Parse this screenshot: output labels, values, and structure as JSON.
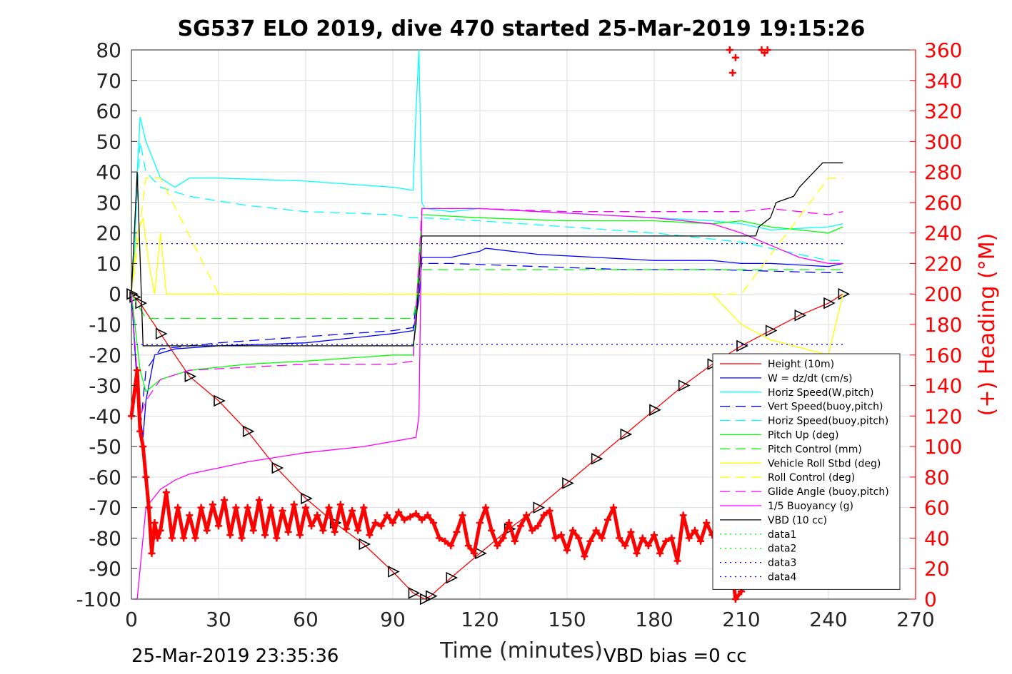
{
  "chart_data": {
    "type": "line",
    "title": "SG537 ELO 2019, dive 470 started 25-Mar-2019 19:15:26",
    "xlabel": "Time (minutes)",
    "ylabel": "",
    "y2label": "(+) Heading (°M)",
    "xlim": [
      0,
      270
    ],
    "ylim": [
      -100,
      80
    ],
    "y2lim": [
      0,
      360
    ],
    "xticks": [
      "0",
      "30",
      "60",
      "90",
      "120",
      "150",
      "180",
      "210",
      "240",
      "270"
    ],
    "yticks": [
      "80",
      "70",
      "60",
      "50",
      "40",
      "30",
      "20",
      "10",
      "0",
      "-10",
      "-20",
      "-30",
      "-40",
      "-50",
      "-60",
      "-70",
      "-80",
      "-90",
      "-100"
    ],
    "y2ticks": [
      "360",
      "340",
      "320",
      "300",
      "280",
      "260",
      "240",
      "220",
      "200",
      "180",
      "160",
      "140",
      "120",
      "100",
      "80",
      "60",
      "40",
      "20",
      "0"
    ],
    "grid": true,
    "legend_position": "lower-right",
    "footer_left": "25-Mar-2019 23:35:36",
    "footer_right": "VBD bias =0 cc",
    "colors": {
      "height": "#ff0000",
      "w": "#0000ff",
      "horiz_w": "#00ffff",
      "vert_buoy": "#0000ff",
      "horiz_buoy": "#00ffff",
      "pitch_up": "#00ff00",
      "pitch_ctrl": "#00ff00",
      "roll": "#ffff00",
      "roll_ctrl": "#ffff00",
      "glide": "#ff00ff",
      "buoyancy": "#ff00ff",
      "vbd": "#000000",
      "data_green": "#00ff00",
      "data_blue": "#0000ff",
      "heading": "#ff0000",
      "axis2": "#ff0000"
    },
    "series": [
      {
        "key": "height",
        "name": "Height (10m)",
        "style": "solid",
        "marker": "triangle",
        "x": [
          0,
          1,
          3,
          10,
          20,
          30,
          40,
          50,
          60,
          70,
          80,
          90,
          97,
          101,
          103,
          110,
          120,
          130,
          140,
          150,
          160,
          170,
          180,
          190,
          200,
          210,
          220,
          230,
          240,
          245
        ],
        "y": [
          0,
          -1,
          -3,
          -13,
          -27,
          -35,
          -45,
          -57,
          -67,
          -75,
          -82,
          -91,
          -98,
          -100,
          -99,
          -93,
          -85,
          -77,
          -70,
          -62,
          -54,
          -46,
          -38,
          -30,
          -23,
          -17,
          -12,
          -7,
          -3,
          0
        ]
      },
      {
        "key": "w",
        "name": "W = dz/dt (cm/s)",
        "style": "solid",
        "x": [
          0,
          1,
          2,
          3,
          4,
          5,
          8,
          15,
          30,
          60,
          90,
          97,
          99,
          100,
          110,
          120,
          122,
          140,
          160,
          180,
          200,
          210,
          220,
          240,
          245
        ],
        "y": [
          0,
          -15,
          -30,
          -40,
          -47,
          -35,
          -20,
          -18,
          -17,
          -16,
          -13,
          -12,
          -2,
          12,
          12,
          14,
          15,
          13,
          12,
          11,
          11,
          10,
          10,
          9,
          10
        ]
      },
      {
        "key": "horiz_w",
        "name": "Horiz Speed(W,pitch)",
        "style": "solid",
        "x": [
          0,
          1,
          2,
          3,
          5,
          10,
          15,
          20,
          30,
          60,
          90,
          97,
          98,
          99,
          100,
          101,
          110,
          120,
          140,
          160,
          180,
          200,
          210,
          220,
          240,
          245
        ],
        "y": [
          0,
          10,
          40,
          58,
          50,
          38,
          35,
          38,
          38,
          37,
          35,
          34,
          60,
          80,
          30,
          28,
          27,
          28,
          27,
          26,
          25,
          24,
          23,
          21,
          22,
          23
        ]
      },
      {
        "key": "vert_buoy",
        "name": "Vert Speed(buoy,pitch)",
        "style": "dashed",
        "x": [
          0,
          3,
          5,
          10,
          30,
          60,
          90,
          97,
          100,
          110,
          140,
          170,
          200,
          240,
          245
        ],
        "y": [
          0,
          -45,
          -25,
          -18,
          -16,
          -14,
          -12,
          -11,
          10,
          10,
          9,
          8,
          8,
          7,
          7
        ]
      },
      {
        "key": "horiz_buoy",
        "name": "Horiz Speed(buoy,pitch)",
        "style": "dashed",
        "x": [
          0,
          3,
          5,
          10,
          20,
          40,
          60,
          90,
          97,
          100,
          120,
          150,
          180,
          210,
          240,
          245
        ],
        "y": [
          0,
          50,
          40,
          35,
          32,
          29,
          27,
          26,
          25,
          25,
          24,
          22,
          20,
          17,
          11,
          11
        ]
      },
      {
        "key": "pitch_up",
        "name": "Pitch Up (deg)",
        "style": "solid",
        "x": [
          0,
          3,
          5,
          10,
          20,
          40,
          60,
          90,
          97,
          100,
          120,
          150,
          180,
          200,
          210,
          220,
          240,
          245
        ],
        "y": [
          0,
          -25,
          -32,
          -28,
          -25,
          -23,
          -22,
          -20,
          -20,
          26,
          25,
          24,
          24,
          23,
          24,
          22,
          20,
          22
        ]
      },
      {
        "key": "pitch_ctrl",
        "name": "Pitch Control (mm)",
        "style": "dashed",
        "x": [
          0,
          5,
          10,
          30,
          60,
          90,
          97,
          100,
          120,
          150,
          180,
          210,
          240,
          245
        ],
        "y": [
          0,
          -8,
          -8,
          -8,
          -8,
          -8,
          -8,
          8,
          8,
          8,
          8,
          8,
          8,
          8
        ]
      },
      {
        "key": "roll",
        "name": "Vehicle Roll Stbd (deg)",
        "style": "solid",
        "x": [
          0,
          2,
          4,
          6,
          8,
          10,
          12,
          14,
          20,
          30,
          40,
          60,
          80,
          97,
          100,
          120,
          140,
          160,
          180,
          200,
          210,
          220,
          240,
          245
        ],
        "y": [
          0,
          20,
          25,
          10,
          0,
          20,
          0,
          0,
          0,
          0,
          0,
          0,
          0,
          0,
          0,
          0,
          0,
          0,
          0,
          0,
          -10,
          -15,
          -20,
          0
        ]
      },
      {
        "key": "roll_ctrl",
        "name": "Roll Control (deg)",
        "style": "dashed",
        "x": [
          0,
          5,
          10,
          30,
          60,
          90,
          97,
          100,
          120,
          150,
          180,
          210,
          240,
          245
        ],
        "y": [
          0,
          38,
          38,
          0,
          0,
          0,
          0,
          0,
          0,
          0,
          0,
          0,
          38,
          38
        ]
      },
      {
        "key": "glide",
        "name": "Glide Angle (buoy,pitch)",
        "style": "dashed",
        "x": [
          0,
          3,
          5,
          10,
          20,
          40,
          60,
          90,
          97,
          100,
          120,
          150,
          180,
          200,
          210,
          220,
          240,
          245
        ],
        "y": [
          0,
          -40,
          -35,
          -28,
          -25,
          -24,
          -23,
          -23,
          -22,
          28,
          28,
          27,
          27,
          27,
          27,
          28,
          26,
          27
        ]
      },
      {
        "key": "buoyancy",
        "name": "1/5 Buoyancy (g)",
        "style": "solid",
        "x": [
          1,
          2,
          3,
          5,
          10,
          15,
          20,
          30,
          40,
          60,
          80,
          98,
          99,
          100,
          120,
          140,
          160,
          180,
          200,
          210,
          220,
          230,
          240,
          245
        ],
        "y": [
          -100,
          -100,
          -90,
          -70,
          -64,
          -61,
          -59,
          -57,
          -55,
          -52,
          -50,
          -47,
          -40,
          28,
          28,
          27,
          26,
          25,
          23,
          20,
          16,
          12,
          10,
          10
        ]
      },
      {
        "key": "vbd",
        "name": "VBD (10 cc)",
        "style": "solid",
        "x": [
          0,
          2,
          4,
          97,
          98,
          100,
          101,
          215,
          216,
          220,
          222,
          228,
          230,
          235,
          238,
          245
        ],
        "y": [
          0,
          40,
          -17,
          -17,
          -10,
          19,
          19,
          19,
          22,
          25,
          30,
          32,
          35,
          40,
          43,
          43
        ]
      },
      {
        "key": "data_green",
        "name": "data1",
        "style": "dotted",
        "x": [],
        "y": []
      },
      {
        "key": "data_green",
        "name": "data2",
        "style": "dotted",
        "x": [],
        "y": []
      },
      {
        "key": "data_blue",
        "name": "data3",
        "style": "dotted",
        "x": [
          0,
          245
        ],
        "y": [
          16.5,
          16.5
        ]
      },
      {
        "key": "data_blue",
        "name": "data4",
        "style": "dotted",
        "x": [
          0,
          245
        ],
        "y": [
          -16.5,
          -16.5
        ]
      }
    ],
    "heading": {
      "name": "Heading",
      "axis": "right",
      "marker": "plus",
      "x": [
        0,
        2,
        3,
        4,
        5,
        6,
        7,
        8,
        9,
        10,
        12,
        14,
        16,
        18,
        20,
        22,
        24,
        26,
        28,
        30,
        32,
        34,
        36,
        38,
        40,
        42,
        44,
        46,
        48,
        50,
        52,
        54,
        56,
        58,
        60,
        62,
        64,
        66,
        68,
        70,
        72,
        74,
        76,
        78,
        80,
        82,
        84,
        86,
        88,
        90,
        92,
        94,
        96,
        98,
        100,
        102,
        104,
        106,
        108,
        110,
        112,
        114,
        116,
        118,
        120,
        122,
        124,
        126,
        128,
        130,
        132,
        134,
        136,
        138,
        140,
        142,
        144,
        146,
        148,
        150,
        152,
        154,
        156,
        158,
        160,
        162,
        164,
        166,
        168,
        170,
        172,
        174,
        176,
        178,
        180,
        182,
        184,
        186,
        188,
        190,
        192,
        194,
        196,
        198,
        200,
        202,
        204,
        206,
        208,
        210,
        212
      ],
      "y": [
        120,
        150,
        110,
        100,
        80,
        60,
        30,
        50,
        40,
        45,
        70,
        40,
        60,
        40,
        55,
        40,
        60,
        45,
        62,
        48,
        65,
        42,
        60,
        40,
        60,
        45,
        65,
        42,
        60,
        40,
        58,
        44,
        62,
        42,
        60,
        48,
        55,
        45,
        60,
        44,
        62,
        46,
        58,
        45,
        60,
        42,
        50,
        48,
        55,
        50,
        57,
        52,
        54,
        56,
        52,
        55,
        50,
        40,
        38,
        35,
        44,
        55,
        35,
        30,
        50,
        60,
        45,
        35,
        40,
        50,
        38,
        48,
        55,
        45,
        48,
        55,
        58,
        40,
        42,
        32,
        45,
        40,
        28,
        38,
        45,
        40,
        52,
        60,
        40,
        35,
        44,
        30,
        40,
        35,
        42,
        30,
        38,
        40,
        25,
        55,
        40,
        45,
        38,
        50,
        42,
        50,
        40,
        30,
        0,
        5,
        20
      ]
    },
    "heading_outliers": {
      "x": [
        206,
        207,
        208,
        217,
        218,
        219
      ],
      "y": [
        360,
        345,
        355,
        360,
        358,
        360
      ]
    }
  }
}
